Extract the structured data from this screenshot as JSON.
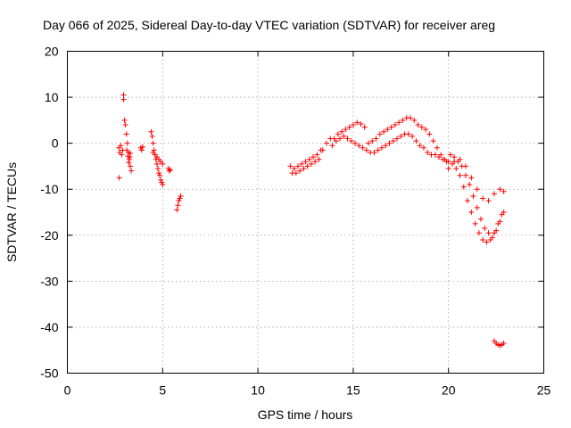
{
  "chart_data": {
    "type": "scatter",
    "title": "Day 066 of 2025, Sidereal Day-to-day VTEC variation (SDTVAR) for receiver areg",
    "xlabel": "GPS time / hours",
    "ylabel": "SDTVAR / TECUs",
    "xlim": [
      0,
      25
    ],
    "ylim": [
      -50,
      20
    ],
    "xticks": [
      0,
      5,
      10,
      15,
      20,
      25
    ],
    "yticks": [
      -50,
      -40,
      -30,
      -20,
      -10,
      0,
      10,
      20
    ],
    "xtick_labels": [
      "0",
      "5",
      "10",
      "15",
      "20",
      "25"
    ],
    "ytick_labels": [
      "-50",
      "-40",
      "-30",
      "-20",
      "-10",
      "0",
      "10",
      "20"
    ],
    "grid": true,
    "marker": "+",
    "color": "#ff0000",
    "series": [
      {
        "name": "SDTVAR",
        "x": [
          2.7,
          2.75,
          2.8,
          2.85,
          2.9,
          2.95,
          2.72,
          2.95,
          3.0,
          3.05,
          3.1,
          3.15,
          3.2,
          3.25,
          3.3,
          3.35,
          3.12,
          3.18,
          3.22,
          3.28,
          3.3,
          3.85,
          3.9,
          3.95,
          4.4,
          4.45,
          4.5,
          4.55,
          4.6,
          4.65,
          4.7,
          4.75,
          4.8,
          4.85,
          4.9,
          4.95,
          5.0,
          4.5,
          4.6,
          4.7,
          4.8,
          4.9,
          5.0,
          5.3,
          5.35,
          5.4,
          5.75,
          5.8,
          5.85,
          5.9,
          5.95,
          11.7,
          11.9,
          12.1,
          12.3,
          12.5,
          12.7,
          12.9,
          13.1,
          13.3,
          11.8,
          12.0,
          12.2,
          12.4,
          12.6,
          12.8,
          13.0,
          13.2,
          13.4,
          13.6,
          13.8,
          14.0,
          14.2,
          14.4,
          14.6,
          14.8,
          15.0,
          15.2,
          15.4,
          15.6,
          13.9,
          14.1,
          14.3,
          14.5,
          14.7,
          14.9,
          15.1,
          15.3,
          15.5,
          15.7,
          15.9,
          15.8,
          16.0,
          16.2,
          16.4,
          16.6,
          16.8,
          17.0,
          17.2,
          17.4,
          17.6,
          17.8,
          18.0,
          18.2,
          18.4,
          16.1,
          16.3,
          16.5,
          16.7,
          16.9,
          17.1,
          17.3,
          17.5,
          17.7,
          17.9,
          18.1,
          18.3,
          18.5,
          18.7,
          18.9,
          19.1,
          19.3,
          19.5,
          19.7,
          19.9,
          20.1,
          20.3,
          20.5,
          20.7,
          20.9,
          21.1,
          21.3,
          21.5,
          21.7,
          21.9,
          22.1,
          22.3,
          22.5,
          22.7,
          22.9,
          18.6,
          18.8,
          19.0,
          19.2,
          19.4,
          19.6,
          19.8,
          20.0,
          20.2,
          20.4,
          20.6,
          20.8,
          21.0,
          21.2,
          21.4,
          21.6,
          21.8,
          22.0,
          22.2,
          22.4,
          22.6,
          22.8,
          20.0,
          20.3,
          20.6,
          20.9,
          21.2,
          21.5,
          21.8,
          22.1,
          22.4,
          22.7,
          22.9,
          22.4,
          22.5,
          22.6,
          22.7,
          22.8,
          22.9
        ],
        "y": [
          -1.0,
          -2.0,
          -0.5,
          -2.5,
          -1.5,
          9.5,
          -7.5,
          10.5,
          5.0,
          4.0,
          2.0,
          0.0,
          -2.0,
          -3.5,
          -5.0,
          -6.0,
          -1.5,
          -2.8,
          -4.2,
          -3.0,
          -2.2,
          -1.0,
          -1.5,
          -0.8,
          2.5,
          1.5,
          0.0,
          -1.5,
          -2.5,
          -3.5,
          -4.5,
          -5.5,
          -6.5,
          -7.0,
          -8.0,
          -8.5,
          -9.0,
          -2.0,
          -2.5,
          -3.0,
          -3.5,
          -4.0,
          -4.5,
          -5.5,
          -6.0,
          -5.8,
          -14.5,
          -13.5,
          -12.5,
          -12.0,
          -11.5,
          -5.0,
          -5.5,
          -5.0,
          -4.5,
          -4.0,
          -3.5,
          -3.0,
          -2.5,
          -1.5,
          -6.5,
          -6.5,
          -6.0,
          -5.5,
          -5.0,
          -4.5,
          -4.0,
          -3.5,
          -1.5,
          0.0,
          1.0,
          1.0,
          2.0,
          2.5,
          3.0,
          3.5,
          4.0,
          4.5,
          4.2,
          3.5,
          -0.5,
          0.5,
          1.0,
          1.5,
          1.0,
          0.5,
          0.0,
          -0.5,
          -1.0,
          -1.5,
          -2.0,
          0.0,
          0.5,
          1.0,
          2.0,
          2.5,
          3.0,
          3.5,
          4.0,
          4.5,
          5.0,
          5.5,
          5.5,
          5.0,
          4.0,
          -2.0,
          -1.5,
          -1.0,
          -0.5,
          0.0,
          0.5,
          1.0,
          1.5,
          2.0,
          2.0,
          1.5,
          0.5,
          -0.5,
          -1.0,
          -2.0,
          -2.5,
          -2.5,
          -3.0,
          -3.5,
          -4.0,
          -2.5,
          -3.0,
          -4.0,
          -5.0,
          -7.0,
          -9.0,
          -11.5,
          -14.0,
          -16.5,
          -18.5,
          -19.5,
          -20.5,
          -19.0,
          -17.0,
          -15.0,
          3.5,
          3.0,
          2.0,
          0.5,
          -1.0,
          -2.5,
          -3.5,
          -4.0,
          -4.5,
          -5.5,
          -7.0,
          -9.5,
          -12.5,
          -15.0,
          -17.5,
          -19.5,
          -21.0,
          -21.5,
          -21.0,
          -19.5,
          -17.5,
          -15.5,
          -5.5,
          -4.0,
          -3.5,
          -5.0,
          -7.5,
          -10.0,
          -12.0,
          -12.5,
          -11.0,
          -10.0,
          -10.5,
          -43.0,
          -43.5,
          -43.8,
          -44.0,
          -43.8,
          -43.5
        ]
      }
    ]
  }
}
